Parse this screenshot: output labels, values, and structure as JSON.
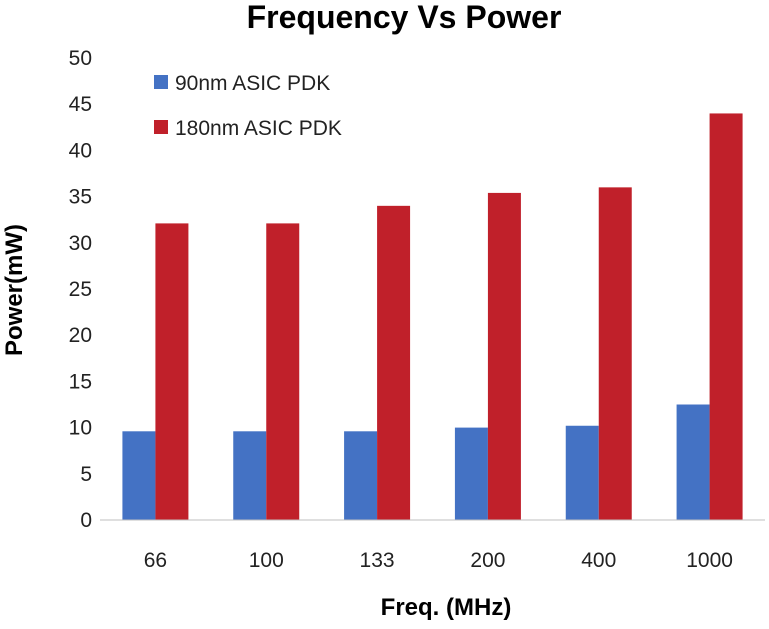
{
  "chart_data": {
    "type": "bar",
    "title": "Frequency Vs Power",
    "xlabel": "Freq. (MHz)",
    "ylabel": "Power(mW)",
    "categories": [
      "66",
      "100",
      "133",
      "200",
      "400",
      "1000"
    ],
    "series": [
      {
        "name": "90nm ASIC PDK",
        "color": "#4472c4",
        "values": [
          9.6,
          9.6,
          9.6,
          10.0,
          10.2,
          12.5
        ]
      },
      {
        "name": "180nm ASIC PDK",
        "color": "#c0202a",
        "values": [
          32.1,
          32.1,
          34.0,
          35.4,
          36.0,
          44.0
        ]
      }
    ],
    "ylim": [
      0,
      50
    ],
    "yticks": [
      "0",
      "5",
      "10",
      "15",
      "20",
      "25",
      "30",
      "35",
      "40",
      "45",
      "50"
    ],
    "grid": false,
    "legend_position": "top-left"
  }
}
